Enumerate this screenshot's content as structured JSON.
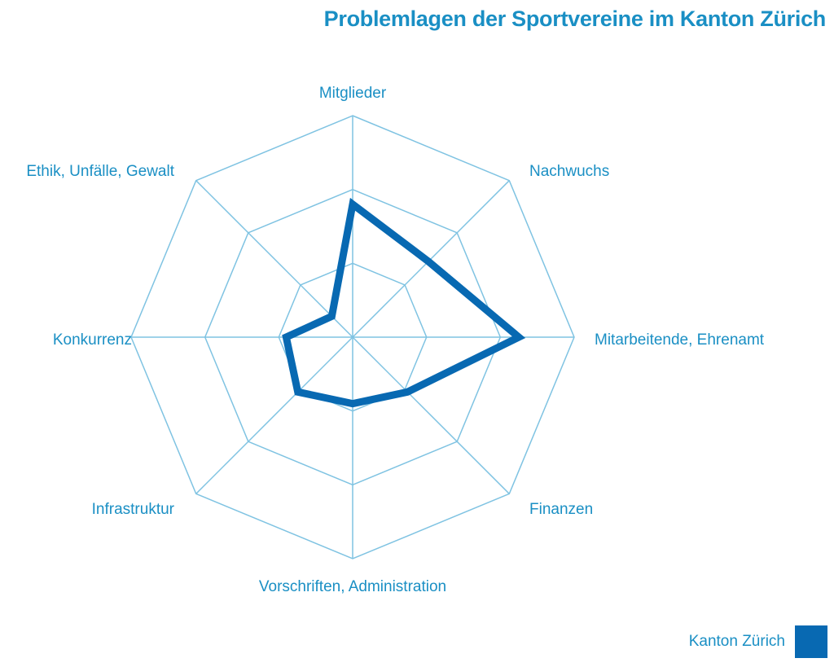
{
  "colors": {
    "text": "#1a8fc4",
    "grid": "#7fc3e2",
    "series": "#0869b2",
    "title": "#1a8fc4"
  },
  "chart_data": {
    "type": "radar",
    "title": "Problemlagen der Sportvereine im Kanton Zürich",
    "axes": [
      "Mitglieder",
      "Nachwuchs",
      "Mitarbeitende, Ehrenamt",
      "Finanzen",
      "Vorschriften, Administration",
      "Infrastruktur",
      "Konkurrenz",
      "Ethik, Unfälle, Gewalt"
    ],
    "rings": 3,
    "range": [
      0,
      3
    ],
    "series": [
      {
        "name": "Kanton Zürich",
        "values": [
          1.8,
          1.45,
          2.25,
          1.05,
          0.9,
          1.05,
          0.9,
          0.4
        ]
      }
    ],
    "legend": "bottom-right"
  }
}
